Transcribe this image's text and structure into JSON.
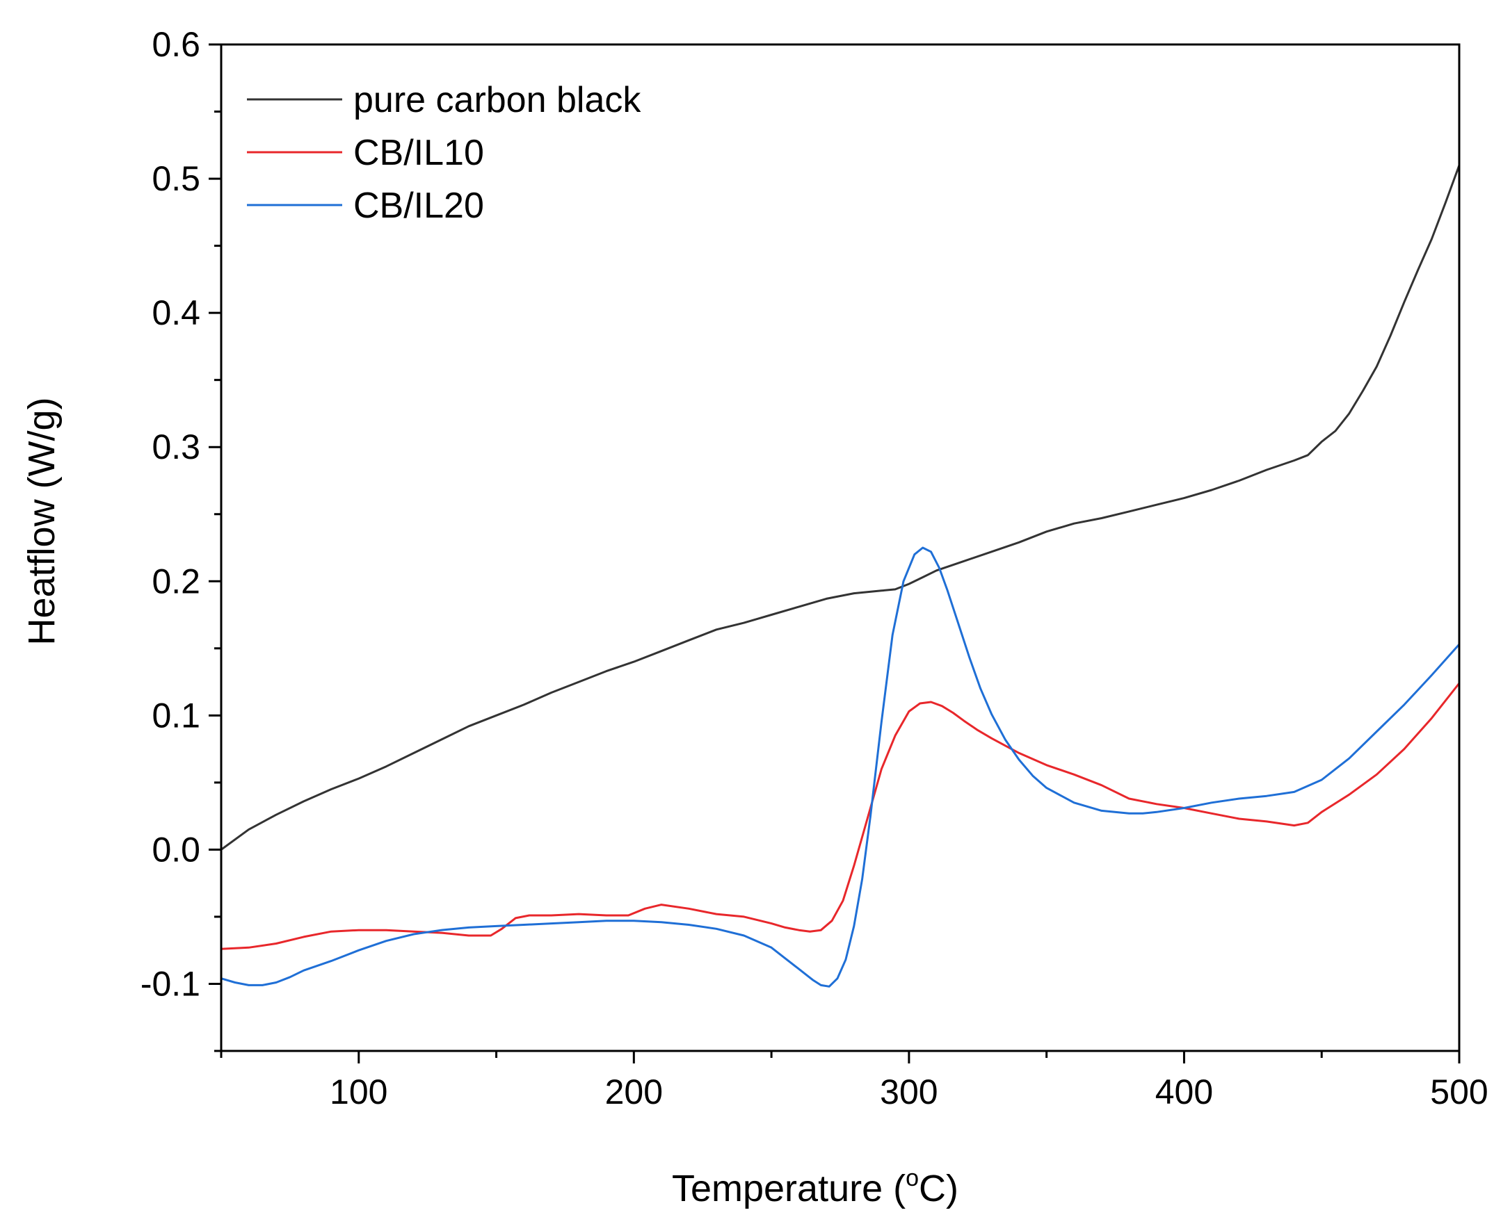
{
  "chart_data": {
    "type": "line",
    "title": "",
    "xlabel": "Temperature (",
    "xlabel_sup": "o",
    "xlabel_tail": "C)",
    "ylabel": "Heatflow (W/g)",
    "xlim": [
      50,
      500
    ],
    "ylim": [
      -0.15,
      0.6
    ],
    "x_ticks": [
      100,
      200,
      300,
      400,
      500
    ],
    "x_tick_labels": [
      "100",
      "200",
      "300",
      "400",
      "500"
    ],
    "y_ticks": [
      -0.1,
      0.0,
      0.1,
      0.2,
      0.3,
      0.4,
      0.5,
      0.6
    ],
    "y_tick_labels": [
      "-0.1",
      "0.0",
      "0.1",
      "0.2",
      "0.3",
      "0.4",
      "0.5",
      "0.6"
    ],
    "grid": false,
    "legend_position": "top-left",
    "series": [
      {
        "name": "pure carbon black",
        "color": "#333333",
        "x": [
          50,
          60,
          70,
          80,
          90,
          100,
          110,
          120,
          130,
          140,
          150,
          160,
          170,
          180,
          190,
          200,
          210,
          220,
          230,
          240,
          250,
          260,
          270,
          280,
          290,
          295,
          300,
          305,
          310,
          320,
          330,
          340,
          350,
          360,
          370,
          380,
          390,
          400,
          410,
          420,
          430,
          440,
          445,
          450,
          455,
          460,
          465,
          470,
          475,
          480,
          485,
          490,
          495,
          500
        ],
        "y": [
          0.0,
          0.015,
          0.026,
          0.036,
          0.045,
          0.053,
          0.062,
          0.072,
          0.082,
          0.092,
          0.1,
          0.108,
          0.117,
          0.125,
          0.133,
          0.14,
          0.148,
          0.156,
          0.164,
          0.169,
          0.175,
          0.181,
          0.187,
          0.191,
          0.193,
          0.194,
          0.198,
          0.203,
          0.208,
          0.215,
          0.222,
          0.229,
          0.237,
          0.243,
          0.247,
          0.252,
          0.257,
          0.262,
          0.268,
          0.275,
          0.283,
          0.29,
          0.294,
          0.304,
          0.312,
          0.325,
          0.342,
          0.36,
          0.383,
          0.408,
          0.432,
          0.455,
          0.482,
          0.51
        ]
      },
      {
        "name": "CB/IL10",
        "color": "#e8272b",
        "x": [
          50,
          60,
          70,
          80,
          90,
          100,
          110,
          120,
          130,
          140,
          148,
          152,
          157,
          162,
          170,
          180,
          190,
          198,
          204,
          210,
          220,
          230,
          240,
          250,
          255,
          260,
          264,
          268,
          272,
          276,
          280,
          285,
          290,
          295,
          300,
          304,
          308,
          312,
          316,
          320,
          325,
          330,
          340,
          350,
          360,
          370,
          380,
          390,
          400,
          410,
          420,
          430,
          440,
          445,
          450,
          460,
          470,
          480,
          490,
          500
        ],
        "y": [
          -0.074,
          -0.073,
          -0.07,
          -0.065,
          -0.061,
          -0.06,
          -0.06,
          -0.061,
          -0.062,
          -0.064,
          -0.064,
          -0.059,
          -0.051,
          -0.049,
          -0.049,
          -0.048,
          -0.049,
          -0.049,
          -0.044,
          -0.041,
          -0.044,
          -0.048,
          -0.05,
          -0.055,
          -0.058,
          -0.06,
          -0.061,
          -0.06,
          -0.053,
          -0.038,
          -0.012,
          0.024,
          0.06,
          0.085,
          0.103,
          0.109,
          0.11,
          0.107,
          0.102,
          0.096,
          0.089,
          0.083,
          0.072,
          0.063,
          0.056,
          0.048,
          0.038,
          0.034,
          0.031,
          0.027,
          0.023,
          0.021,
          0.018,
          0.02,
          0.028,
          0.041,
          0.056,
          0.075,
          0.098,
          0.124
        ]
      },
      {
        "name": "CB/IL20",
        "color": "#1f6fd6",
        "x": [
          50,
          55,
          60,
          65,
          70,
          75,
          80,
          90,
          100,
          110,
          120,
          130,
          140,
          150,
          160,
          170,
          180,
          190,
          200,
          210,
          220,
          230,
          240,
          250,
          255,
          260,
          265,
          268,
          271,
          274,
          277,
          280,
          283,
          286,
          290,
          294,
          298,
          302,
          305,
          308,
          311,
          314,
          318,
          322,
          326,
          330,
          335,
          340,
          345,
          350,
          360,
          370,
          380,
          385,
          390,
          400,
          410,
          420,
          430,
          440,
          450,
          460,
          470,
          480,
          490,
          500
        ],
        "y": [
          -0.096,
          -0.099,
          -0.101,
          -0.101,
          -0.099,
          -0.095,
          -0.09,
          -0.083,
          -0.075,
          -0.068,
          -0.063,
          -0.06,
          -0.058,
          -0.057,
          -0.056,
          -0.055,
          -0.054,
          -0.053,
          -0.053,
          -0.054,
          -0.056,
          -0.059,
          -0.064,
          -0.073,
          -0.081,
          -0.089,
          -0.097,
          -0.101,
          -0.102,
          -0.096,
          -0.082,
          -0.057,
          -0.022,
          0.025,
          0.095,
          0.16,
          0.2,
          0.22,
          0.225,
          0.222,
          0.21,
          0.193,
          0.168,
          0.143,
          0.12,
          0.101,
          0.082,
          0.067,
          0.055,
          0.046,
          0.035,
          0.029,
          0.027,
          0.027,
          0.028,
          0.031,
          0.035,
          0.038,
          0.04,
          0.043,
          0.052,
          0.068,
          0.088,
          0.108,
          0.13,
          0.153
        ]
      }
    ]
  }
}
